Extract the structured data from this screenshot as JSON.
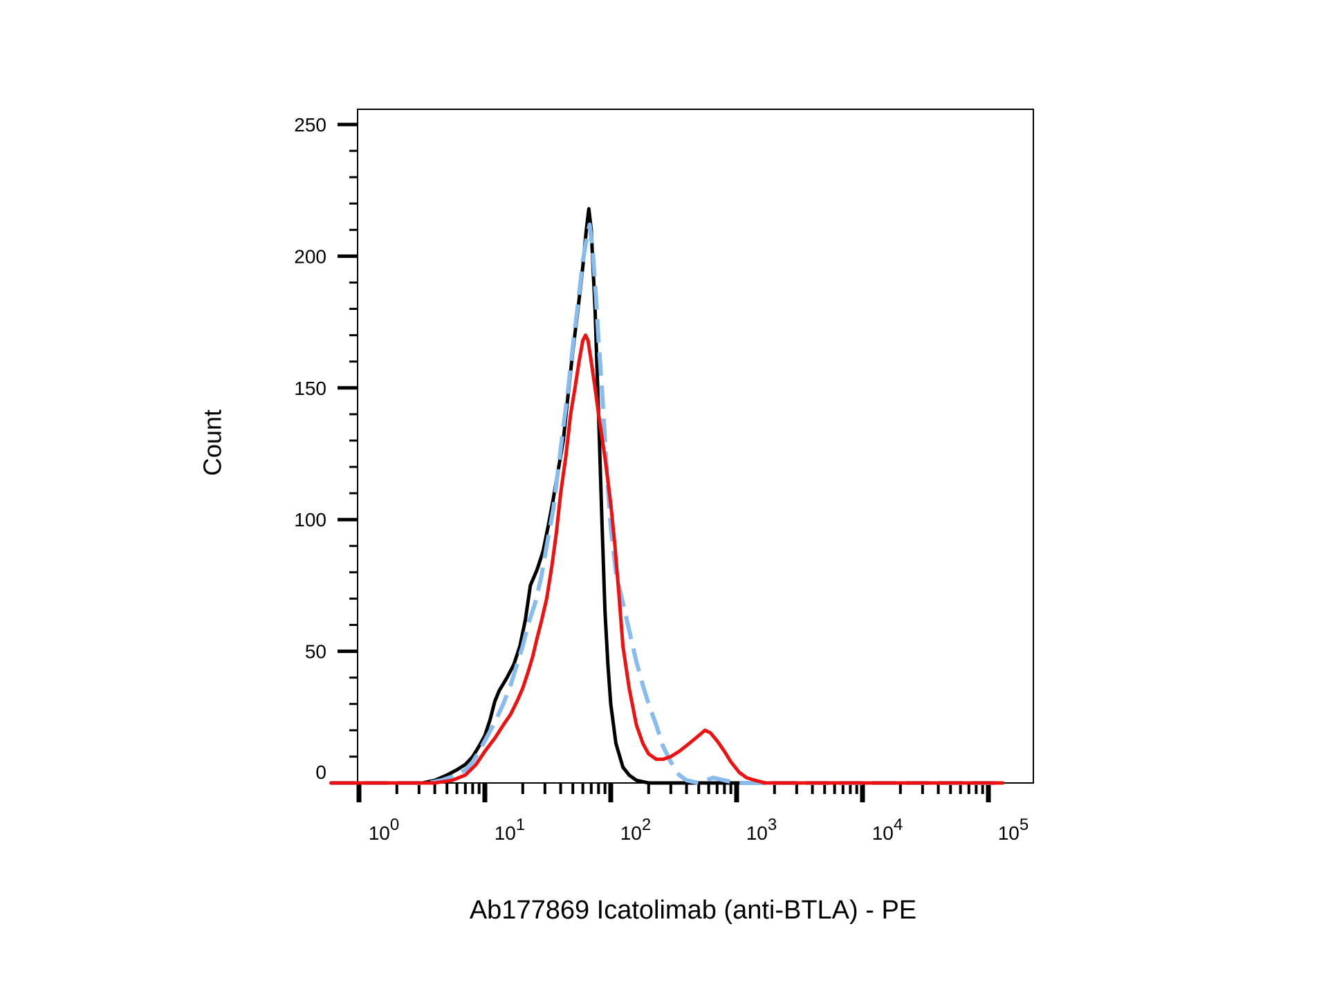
{
  "chart_data": {
    "type": "line",
    "xlabel": "Ab177869 Icatolimab (anti-BTLA) - PE",
    "ylabel": "Count",
    "x_scale": "log",
    "xlim": [
      0.6,
      130000
    ],
    "ylim": [
      0,
      250
    ],
    "y_ticks": [
      0,
      50,
      100,
      150,
      200,
      250
    ],
    "x_ticks": [
      {
        "value": 1,
        "base": "10",
        "exp": "0"
      },
      {
        "value": 10,
        "base": "10",
        "exp": "1"
      },
      {
        "value": 100,
        "base": "10",
        "exp": "2"
      },
      {
        "value": 1000,
        "base": "10",
        "exp": "3"
      },
      {
        "value": 10000,
        "base": "10",
        "exp": "4"
      },
      {
        "value": 100000,
        "base": "10",
        "exp": "5"
      }
    ],
    "grid": false,
    "series": [
      {
        "color": "#000000",
        "style": "solid",
        "points": [
          [
            0.6,
            0
          ],
          [
            3.2,
            0
          ],
          [
            4,
            1
          ],
          [
            5,
            3
          ],
          [
            6,
            5
          ],
          [
            7,
            7
          ],
          [
            8,
            10
          ],
          [
            9,
            14
          ],
          [
            10,
            18
          ],
          [
            11,
            24
          ],
          [
            12,
            31
          ],
          [
            13,
            35
          ],
          [
            15,
            40
          ],
          [
            17,
            45
          ],
          [
            19,
            52
          ],
          [
            21,
            62
          ],
          [
            23,
            75
          ],
          [
            26,
            81
          ],
          [
            29,
            88
          ],
          [
            32,
            98
          ],
          [
            35,
            108
          ],
          [
            38,
            118
          ],
          [
            42,
            130
          ],
          [
            46,
            148
          ],
          [
            50,
            164
          ],
          [
            55,
            180
          ],
          [
            60,
            196
          ],
          [
            64,
            210
          ],
          [
            67,
            218
          ],
          [
            70,
            210
          ],
          [
            75,
            180
          ],
          [
            80,
            140
          ],
          [
            85,
            100
          ],
          [
            90,
            65
          ],
          [
            95,
            45
          ],
          [
            100,
            30
          ],
          [
            110,
            15
          ],
          [
            125,
            6
          ],
          [
            140,
            3
          ],
          [
            160,
            1
          ],
          [
            200,
            0
          ],
          [
            130000,
            0
          ]
        ]
      },
      {
        "color": "#88bbee",
        "style": "dashed",
        "points": [
          [
            0.6,
            0
          ],
          [
            3.5,
            0
          ],
          [
            4.5,
            1
          ],
          [
            6,
            3
          ],
          [
            7,
            5
          ],
          [
            8,
            8
          ],
          [
            9,
            12
          ],
          [
            10,
            16
          ],
          [
            12,
            23
          ],
          [
            14,
            30
          ],
          [
            16,
            37
          ],
          [
            18,
            45
          ],
          [
            20,
            52
          ],
          [
            22,
            60
          ],
          [
            25,
            68
          ],
          [
            28,
            78
          ],
          [
            31,
            90
          ],
          [
            35,
            104
          ],
          [
            38,
            118
          ],
          [
            42,
            135
          ],
          [
            46,
            150
          ],
          [
            50,
            166
          ],
          [
            55,
            182
          ],
          [
            60,
            198
          ],
          [
            65,
            208
          ],
          [
            68,
            212
          ],
          [
            72,
            202
          ],
          [
            76,
            186
          ],
          [
            80,
            168
          ],
          [
            85,
            150
          ],
          [
            90,
            130
          ],
          [
            95,
            112
          ],
          [
            100,
            97
          ],
          [
            110,
            80
          ],
          [
            120,
            72
          ],
          [
            140,
            58
          ],
          [
            160,
            46
          ],
          [
            180,
            37
          ],
          [
            200,
            30
          ],
          [
            230,
            22
          ],
          [
            260,
            14
          ],
          [
            300,
            8
          ],
          [
            350,
            3
          ],
          [
            400,
            1
          ],
          [
            500,
            0
          ],
          [
            650,
            2
          ],
          [
            800,
            1
          ],
          [
            1000,
            0
          ],
          [
            130000,
            0
          ]
        ]
      },
      {
        "color": "#ee1111",
        "style": "solid",
        "points": [
          [
            0.6,
            0
          ],
          [
            4,
            0
          ],
          [
            5.5,
            1
          ],
          [
            7,
            3
          ],
          [
            8.5,
            7
          ],
          [
            10,
            12
          ],
          [
            12,
            17
          ],
          [
            14,
            22
          ],
          [
            16,
            26
          ],
          [
            18,
            31
          ],
          [
            20,
            36
          ],
          [
            22,
            42
          ],
          [
            24,
            48
          ],
          [
            26,
            55
          ],
          [
            28,
            61
          ],
          [
            31,
            70
          ],
          [
            34,
            82
          ],
          [
            37,
            95
          ],
          [
            40,
            110
          ],
          [
            44,
            124
          ],
          [
            48,
            140
          ],
          [
            52,
            150
          ],
          [
            56,
            160
          ],
          [
            60,
            168
          ],
          [
            63,
            170
          ],
          [
            66,
            168
          ],
          [
            70,
            160
          ],
          [
            75,
            150
          ],
          [
            80,
            140
          ],
          [
            86,
            130
          ],
          [
            92,
            120
          ],
          [
            100,
            106
          ],
          [
            108,
            90
          ],
          [
            116,
            72
          ],
          [
            125,
            52
          ],
          [
            140,
            36
          ],
          [
            160,
            22
          ],
          [
            180,
            15
          ],
          [
            200,
            11
          ],
          [
            230,
            9
          ],
          [
            260,
            9
          ],
          [
            300,
            10
          ],
          [
            350,
            12
          ],
          [
            420,
            15
          ],
          [
            500,
            18
          ],
          [
            560,
            20
          ],
          [
            620,
            19
          ],
          [
            700,
            16
          ],
          [
            800,
            12
          ],
          [
            900,
            8
          ],
          [
            1050,
            4
          ],
          [
            1200,
            2
          ],
          [
            1400,
            1
          ],
          [
            1700,
            0
          ],
          [
            130000,
            0
          ]
        ]
      }
    ]
  }
}
